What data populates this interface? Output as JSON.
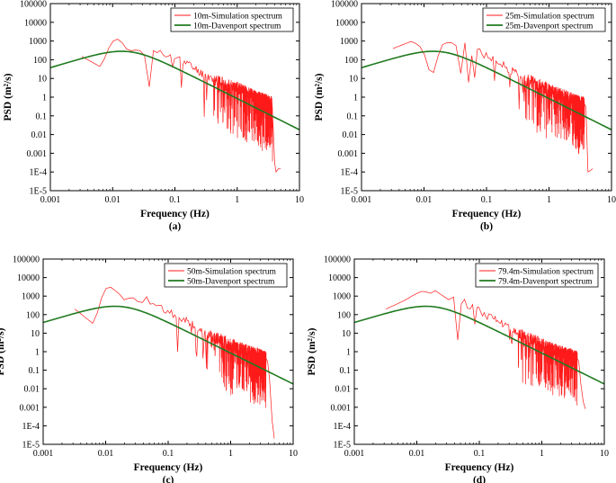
{
  "chart_data": [
    {
      "panel": "(a)",
      "type": "line",
      "xlabel": "Frequency (Hz)",
      "ylabel": "PSD (m²/s)",
      "xscale": "log",
      "yscale": "log",
      "xlim": [
        0.001,
        10
      ],
      "ylim": [
        1e-05,
        100000
      ],
      "xticks": [
        "0.001",
        "0.01",
        "0.1",
        "1",
        "10"
      ],
      "yticks": [
        "1E-5",
        "1E-4",
        "0.001",
        "0.01",
        "0.1",
        "1",
        "10",
        "100",
        "1000",
        "10000",
        "100000"
      ],
      "legend_position": "top-right",
      "series": [
        {
          "name": "10m-Simulation spectrum",
          "color": "#ff1a1a",
          "seed": 11,
          "x": [
            0.0032,
            0.0065,
            0.0095,
            0.013,
            0.016,
            0.02,
            0.026,
            0.033,
            0.043,
            0.055,
            0.07,
            0.09,
            0.12,
            0.16,
            0.22,
            0.3,
            0.4,
            0.55,
            0.75,
            1.0,
            1.4,
            2.0,
            2.8,
            3.6,
            3.8,
            4.0,
            4.2,
            4.6,
            5.0
          ],
          "y": [
            150,
            40,
            900,
            1400,
            400,
            300,
            350,
            200,
            400,
            250,
            150,
            130,
            100,
            60,
            30,
            15,
            10,
            6,
            4,
            3,
            1.8,
            1.0,
            0.7,
            0.5,
            0.02,
            0.0003,
            0.0001,
            0.00015,
            0.00015
          ]
        },
        {
          "name": "10m-Davenport spectrum",
          "color": "#1f7a1f",
          "type": "davenport",
          "peak_freq": 0.018,
          "peak_value": 270
        }
      ]
    },
    {
      "panel": "(b)",
      "type": "line",
      "xlabel": "Frequency (Hz)",
      "ylabel": "PSD (m²/s)",
      "xscale": "log",
      "yscale": "log",
      "xlim": [
        0.001,
        10
      ],
      "ylim": [
        1e-05,
        100000
      ],
      "xticks": [
        "0.001",
        "0.01",
        "0.1",
        "1",
        "10"
      ],
      "yticks": [
        "1E-5",
        "1E-4",
        "0.001",
        "0.01",
        "0.1",
        "1",
        "10",
        "100",
        "1000",
        "10000",
        "100000"
      ],
      "legend_position": "top-right",
      "series": [
        {
          "name": "25m-Simulation spectrum",
          "color": "#ff1a1a",
          "seed": 25,
          "x": [
            0.0032,
            0.0065,
            0.0095,
            0.012,
            0.0135,
            0.015,
            0.02,
            0.026,
            0.033,
            0.043,
            0.055,
            0.07,
            0.09,
            0.12,
            0.16,
            0.22,
            0.3,
            0.4,
            0.55,
            0.75,
            1.0,
            1.4,
            2.0,
            2.8,
            3.6,
            3.9,
            4.2,
            4.6,
            5.0
          ],
          "y": [
            400,
            1000,
            400,
            30,
            8,
            60,
            700,
            900,
            600,
            1000,
            600,
            300,
            200,
            120,
            70,
            35,
            18,
            10,
            6,
            4,
            2.5,
            1.5,
            1.0,
            0.6,
            0.5,
            0.3,
            0.0001,
            0.00012,
            0.00015
          ]
        },
        {
          "name": "25m-Davenport spectrum",
          "color": "#1f7a1f",
          "type": "davenport",
          "peak_freq": 0.018,
          "peak_value": 270
        }
      ]
    },
    {
      "panel": "(c)",
      "type": "line",
      "xlabel": "Frequency (Hz)",
      "ylabel": "PSD (m²/s)",
      "xscale": "log",
      "yscale": "log",
      "xlim": [
        0.001,
        10
      ],
      "ylim": [
        1e-05,
        100000
      ],
      "xticks": [
        "0.001",
        "0.01",
        "0.1",
        "1",
        "10"
      ],
      "yticks": [
        "1E-5",
        "1E-4",
        "0.001",
        "0.01",
        "0.1",
        "1",
        "10",
        "100",
        "1000",
        "10000",
        "100000"
      ],
      "legend_position": "top-right",
      "series": [
        {
          "name": "50m-Simulation spectrum",
          "color": "#ff1a1a",
          "seed": 50,
          "x": [
            0.0032,
            0.0065,
            0.0095,
            0.012,
            0.016,
            0.02,
            0.026,
            0.033,
            0.043,
            0.055,
            0.07,
            0.09,
            0.12,
            0.16,
            0.22,
            0.3,
            0.4,
            0.55,
            0.75,
            1.0,
            1.4,
            2.0,
            2.8,
            3.6,
            3.9,
            4.2,
            4.6,
            5.0
          ],
          "y": [
            200,
            30,
            2500,
            3000,
            1500,
            600,
            900,
            600,
            700,
            500,
            300,
            200,
            110,
            70,
            35,
            18,
            10,
            6,
            4,
            2.5,
            1.6,
            1.0,
            0.7,
            0.5,
            0.3,
            0.03,
            0.0002,
            2e-05
          ]
        },
        {
          "name": "50m-Davenport spectrum",
          "color": "#1f7a1f",
          "type": "davenport",
          "peak_freq": 0.018,
          "peak_value": 270
        }
      ]
    },
    {
      "panel": "(d)",
      "type": "line",
      "xlabel": "Frequency (Hz)",
      "ylabel": "PSD (m²/s)",
      "xscale": "log",
      "yscale": "log",
      "xlim": [
        0.001,
        10
      ],
      "ylim": [
        1e-05,
        100000
      ],
      "xticks": [
        "0.001",
        "0.01",
        "0.1",
        "1",
        "10"
      ],
      "yticks": [
        "1E-5",
        "1E-4",
        "0.001",
        "0.01",
        "0.1",
        "1",
        "10",
        "100",
        "1000",
        "10000",
        "100000"
      ],
      "legend_position": "top-right",
      "series": [
        {
          "name": "79.4m-Simulation spectrum",
          "color": "#ff1a1a",
          "seed": 79,
          "x": [
            0.0032,
            0.0065,
            0.0095,
            0.013,
            0.016,
            0.02,
            0.026,
            0.033,
            0.043,
            0.055,
            0.07,
            0.09,
            0.12,
            0.16,
            0.22,
            0.3,
            0.4,
            0.55,
            0.75,
            1.0,
            1.4,
            2.0,
            2.8,
            3.6,
            3.9,
            4.2,
            4.6,
            5.0
          ],
          "y": [
            200,
            600,
            1300,
            2000,
            1300,
            2000,
            1000,
            700,
            900,
            500,
            300,
            200,
            110,
            70,
            40,
            20,
            10,
            6,
            4,
            2.5,
            1.5,
            1.0,
            0.7,
            0.5,
            0.3,
            0.02,
            0.002,
            0.0008
          ]
        },
        {
          "name": "79.4m-Davenport spectrum",
          "color": "#1f7a1f",
          "type": "davenport",
          "peak_freq": 0.018,
          "peak_value": 270
        }
      ]
    }
  ]
}
